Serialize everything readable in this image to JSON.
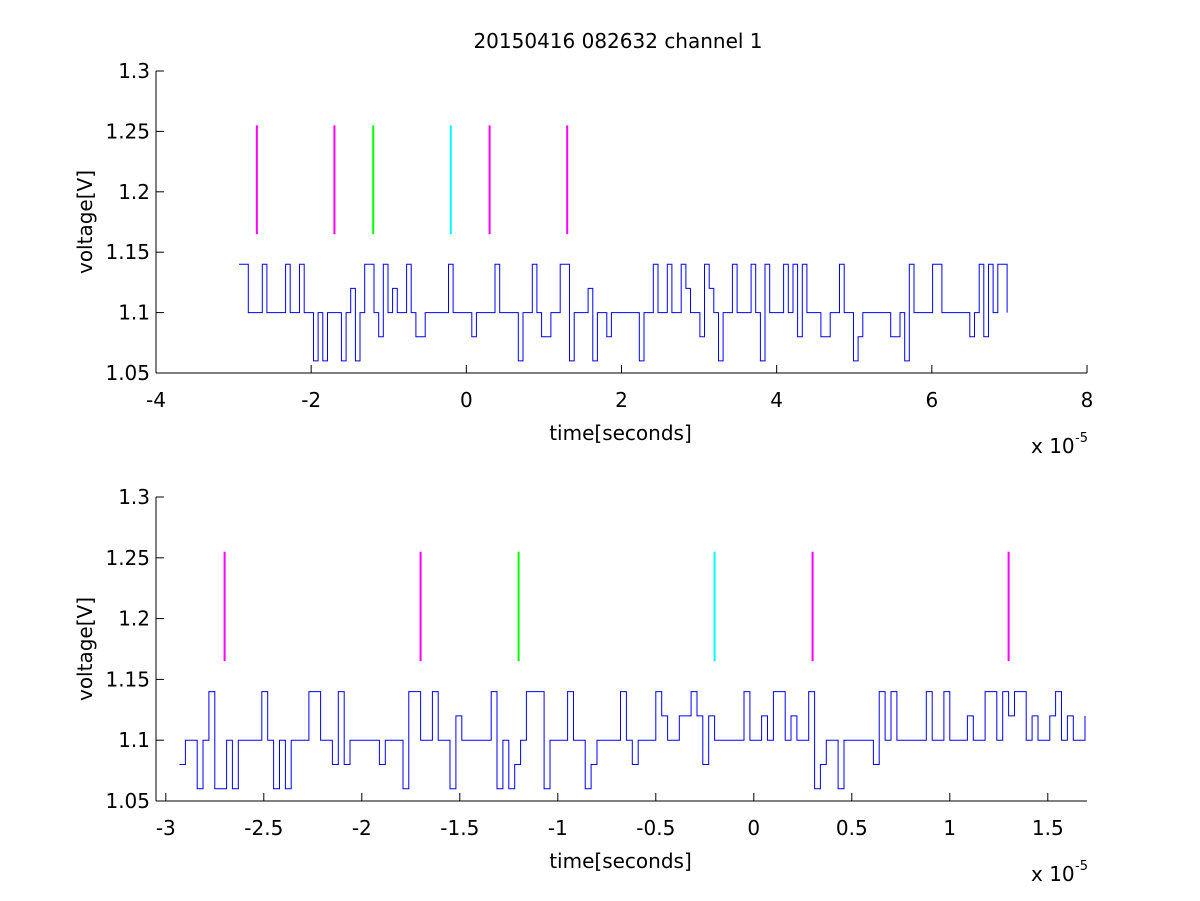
{
  "figure": {
    "title": "20150416 082632 channel 1"
  },
  "chart_data": [
    {
      "type": "line",
      "title": "20150416 082632 channel 1",
      "xlabel": "time[seconds]",
      "ylabel": "voltage[V]",
      "x_exponent_label": "x 10",
      "x_exponent_power": "-5",
      "xlim": [
        -4,
        8
      ],
      "ylim": [
        1.05,
        1.3
      ],
      "x_unit_scale": "1e-5",
      "xticks": [
        -4,
        -2,
        0,
        2,
        4,
        6,
        8
      ],
      "xtick_labels": [
        "-4",
        "-2",
        "0",
        "2",
        "4",
        "6",
        "8"
      ],
      "yticks": [
        1.05,
        1.1,
        1.15,
        1.2,
        1.25,
        1.3
      ],
      "ytick_labels": [
        "1.05",
        "1.1",
        "1.15",
        "1.2",
        "1.25",
        "1.3"
      ],
      "grid": false,
      "signal": {
        "color": "#0000ff",
        "x_start": -2.93,
        "x_end": 7.0,
        "levels": [
          1.06,
          1.08,
          1.1,
          1.12,
          1.14
        ],
        "baseline": 1.1,
        "samples_description_x_range": [
          -2.93,
          7.0
        ]
      },
      "markers": [
        {
          "x": -2.7,
          "y_from": 1.165,
          "y_to": 1.255,
          "color": "#ff00ff"
        },
        {
          "x": -1.7,
          "y_from": 1.165,
          "y_to": 1.255,
          "color": "#ff00ff"
        },
        {
          "x": -1.2,
          "y_from": 1.165,
          "y_to": 1.255,
          "color": "#00ff00"
        },
        {
          "x": -0.2,
          "y_from": 1.165,
          "y_to": 1.255,
          "color": "#00ffff"
        },
        {
          "x": 0.3,
          "y_from": 1.165,
          "y_to": 1.255,
          "color": "#ff00ff"
        },
        {
          "x": 1.3,
          "y_from": 1.165,
          "y_to": 1.255,
          "color": "#ff00ff"
        }
      ]
    },
    {
      "type": "line",
      "title": "",
      "xlabel": "time[seconds]",
      "ylabel": "voltage[V]",
      "x_exponent_label": "x 10",
      "x_exponent_power": "-5",
      "xlim": [
        -3.05,
        1.7
      ],
      "ylim": [
        1.05,
        1.3
      ],
      "x_unit_scale": "1e-5",
      "xticks": [
        -3,
        -2.5,
        -2,
        -1.5,
        -1,
        -0.5,
        0,
        0.5,
        1,
        1.5
      ],
      "xtick_labels": [
        "-3",
        "-2.5",
        "-2",
        "-1.5",
        "-1",
        "-0.5",
        "0",
        "0.5",
        "1",
        "1.5"
      ],
      "yticks": [
        1.05,
        1.1,
        1.15,
        1.2,
        1.25,
        1.3
      ],
      "ytick_labels": [
        "1.05",
        "1.1",
        "1.15",
        "1.2",
        "1.25",
        "1.3"
      ],
      "grid": false,
      "signal": {
        "color": "#0000ff",
        "x_start": -2.93,
        "x_end": 1.7,
        "levels": [
          1.06,
          1.08,
          1.1,
          1.12,
          1.14
        ],
        "baseline": 1.1
      },
      "markers": [
        {
          "x": -2.7,
          "y_from": 1.165,
          "y_to": 1.255,
          "color": "#ff00ff"
        },
        {
          "x": -1.7,
          "y_from": 1.165,
          "y_to": 1.255,
          "color": "#ff00ff"
        },
        {
          "x": -1.2,
          "y_from": 1.165,
          "y_to": 1.255,
          "color": "#00ff00"
        },
        {
          "x": -0.2,
          "y_from": 1.165,
          "y_to": 1.255,
          "color": "#00ffff"
        },
        {
          "x": 0.3,
          "y_from": 1.165,
          "y_to": 1.255,
          "color": "#ff00ff"
        },
        {
          "x": 1.3,
          "y_from": 1.165,
          "y_to": 1.255,
          "color": "#ff00ff"
        }
      ]
    }
  ]
}
